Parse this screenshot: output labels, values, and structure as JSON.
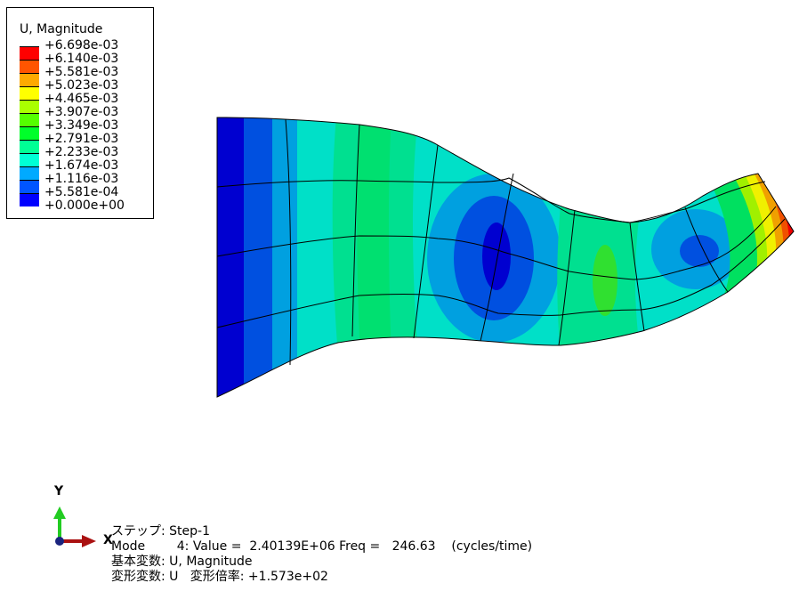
{
  "legend": {
    "title": "U, Magnitude",
    "entries": [
      {
        "label": "+6.698e-03",
        "color": "#ff0000"
      },
      {
        "label": "+6.140e-03",
        "color": "#ff5500"
      },
      {
        "label": "+5.581e-03",
        "color": "#ffaa00"
      },
      {
        "label": "+5.023e-03",
        "color": "#ffff00"
      },
      {
        "label": "+4.465e-03",
        "color": "#aaff00"
      },
      {
        "label": "+3.907e-03",
        "color": "#55ff00"
      },
      {
        "label": "+3.349e-03",
        "color": "#00ff2a"
      },
      {
        "label": "+2.791e-03",
        "color": "#00ff95"
      },
      {
        "label": "+2.233e-03",
        "color": "#00ffd5"
      },
      {
        "label": "+1.674e-03",
        "color": "#00aaff"
      },
      {
        "label": "+1.116e-03",
        "color": "#0055ff"
      },
      {
        "label": "+5.581e-04",
        "color": "#0000ff"
      },
      {
        "label": "+0.000e+00",
        "color": ""
      }
    ]
  },
  "triad": {
    "y_label": "Y",
    "x_label": "X",
    "y_color": "#22cc22",
    "x_color": "#aa1111",
    "z_color": "#1a237e"
  },
  "info": {
    "step": "ステップ: Step-1",
    "mode": "Mode        4: Value =  2.40139E+06 Freq =   246.63    (cycles/time)",
    "primary": "基本変数: U, Magnitude",
    "deformed": "変形変数: U   変形倍率: +1.573e+02"
  },
  "model_colors": {
    "blue": "#0000d0",
    "blue2": "#0050e0",
    "lightblue": "#00a0e0",
    "cyan": "#00e0c8",
    "green1": "#00e090",
    "green2": "#00e060",
    "green3": "#30e030",
    "lime": "#a0f000",
    "yellow": "#f0f000",
    "orange": "#f0a000",
    "orange2": "#f05000",
    "red": "#f00000"
  }
}
